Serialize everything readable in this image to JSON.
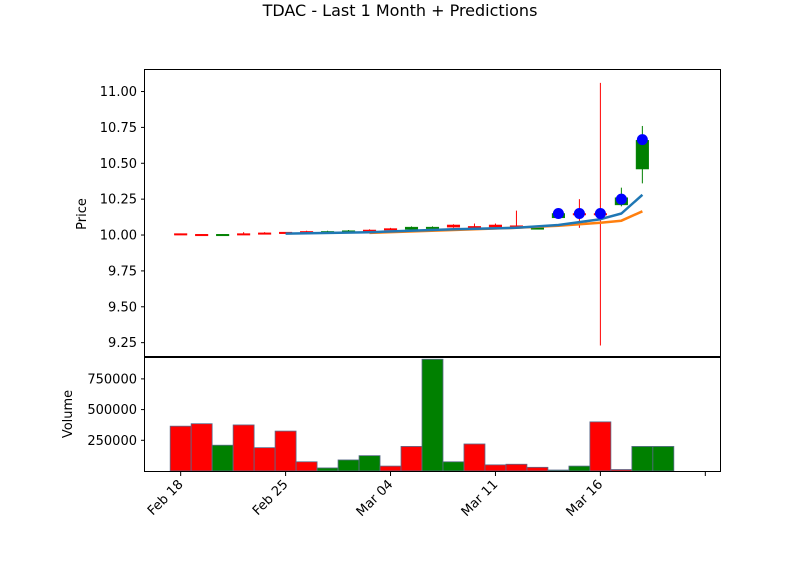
{
  "chart_data": {
    "type": "candlestick",
    "title": "TDAC - Last 1 Month + Predictions",
    "price_panel": {
      "ylabel": "Price",
      "ylim": [
        9.15,
        11.15
      ],
      "yticks": [
        "9.25",
        "9.50",
        "9.75",
        "10.00",
        "10.25",
        "10.50",
        "10.75",
        "11.00"
      ],
      "ytick_values": [
        9.25,
        9.5,
        9.75,
        10.0,
        10.25,
        10.5,
        10.75,
        11.0
      ],
      "candles": [
        {
          "day": 0,
          "open": 10.01,
          "close": 10.005,
          "high": 10.01,
          "low": 10.0,
          "color": "#ff0000"
        },
        {
          "day": 1,
          "open": 10.005,
          "close": 10.0,
          "high": 10.005,
          "low": 10.0,
          "color": "#ff0000"
        },
        {
          "day": 2,
          "open": 10.0,
          "close": 10.005,
          "high": 10.005,
          "low": 10.0,
          "color": "#008000"
        },
        {
          "day": 3,
          "open": 10.01,
          "close": 10.005,
          "high": 10.02,
          "low": 10.0,
          "color": "#ff0000"
        },
        {
          "day": 4,
          "open": 10.015,
          "close": 10.01,
          "high": 10.02,
          "low": 10.01,
          "color": "#ff0000"
        },
        {
          "day": 5,
          "open": 10.02,
          "close": 10.015,
          "high": 10.02,
          "low": 10.01,
          "color": "#ff0000"
        },
        {
          "day": 6,
          "open": 10.025,
          "close": 10.02,
          "high": 10.03,
          "low": 10.02,
          "color": "#ff0000"
        },
        {
          "day": 7,
          "open": 10.02,
          "close": 10.025,
          "high": 10.03,
          "low": 10.02,
          "color": "#008000"
        },
        {
          "day": 8,
          "open": 10.025,
          "close": 10.03,
          "high": 10.035,
          "low": 10.025,
          "color": "#008000"
        },
        {
          "day": 9,
          "open": 10.035,
          "close": 10.03,
          "high": 10.04,
          "low": 10.025,
          "color": "#ff0000"
        },
        {
          "day": 10,
          "open": 10.045,
          "close": 10.04,
          "high": 10.05,
          "low": 10.035,
          "color": "#ff0000"
        },
        {
          "day": 11,
          "open": 10.04,
          "close": 10.055,
          "high": 10.06,
          "low": 10.04,
          "color": "#008000"
        },
        {
          "day": 12,
          "open": 10.05,
          "close": 10.055,
          "high": 10.06,
          "low": 10.045,
          "color": "#008000"
        },
        {
          "day": 13,
          "open": 10.07,
          "close": 10.055,
          "high": 10.075,
          "low": 10.05,
          "color": "#ff0000"
        },
        {
          "day": 14,
          "open": 10.06,
          "close": 10.05,
          "high": 10.08,
          "low": 10.04,
          "color": "#ff0000"
        },
        {
          "day": 15,
          "open": 10.07,
          "close": 10.055,
          "high": 10.08,
          "low": 10.05,
          "color": "#ff0000"
        },
        {
          "day": 16,
          "open": 10.065,
          "close": 10.06,
          "high": 10.17,
          "low": 10.05,
          "color": "#ff0000"
        },
        {
          "day": 17,
          "open": 10.05,
          "close": 10.05,
          "high": 10.055,
          "low": 10.045,
          "color": "#008000"
        },
        {
          "day": 18,
          "open": 10.12,
          "close": 10.15,
          "high": 10.17,
          "low": 10.12,
          "color": "#008000"
        },
        {
          "day": 19,
          "open": 10.15,
          "close": 10.14,
          "high": 10.25,
          "low": 10.05,
          "color": "#ff0000"
        },
        {
          "day": 20,
          "open": 10.15,
          "close": 10.14,
          "high": 11.06,
          "low": 9.23,
          "color": "#ff0000"
        },
        {
          "day": 21,
          "open": 10.21,
          "close": 10.26,
          "high": 10.33,
          "low": 10.2,
          "color": "#008000"
        },
        {
          "day": 22,
          "open": 10.46,
          "close": 10.66,
          "high": 10.76,
          "low": 10.36,
          "color": "#008000"
        }
      ],
      "blue_line": {
        "color": "#1f77b4",
        "points": [
          [
            5,
            10.01
          ],
          [
            9,
            10.02
          ],
          [
            13,
            10.04
          ],
          [
            16,
            10.05
          ],
          [
            18,
            10.07
          ],
          [
            20,
            10.11
          ],
          [
            21,
            10.15
          ],
          [
            22,
            10.28
          ]
        ]
      },
      "orange_line": {
        "color": "#ff7f0e",
        "points": [
          [
            9,
            10.015
          ],
          [
            13,
            10.035
          ],
          [
            16,
            10.05
          ],
          [
            18,
            10.065
          ],
          [
            20,
            10.085
          ],
          [
            21,
            10.1
          ],
          [
            22,
            10.165
          ]
        ]
      },
      "prediction_markers": {
        "color": "#0000ff",
        "points": [
          [
            18,
            10.15
          ],
          [
            19,
            10.15
          ],
          [
            20,
            10.15
          ],
          [
            21,
            10.25
          ],
          [
            22,
            10.665
          ]
        ]
      }
    },
    "volume_panel": {
      "ylabel": "Volume",
      "ylim": [
        0,
        920000
      ],
      "yticks": [
        "250000",
        "500000",
        "750000"
      ],
      "ytick_values": [
        250000,
        500000,
        750000
      ],
      "bars": [
        {
          "day": 0,
          "value": 365000,
          "color": "#ff0000"
        },
        {
          "day": 1,
          "value": 385000,
          "color": "#ff0000"
        },
        {
          "day": 2,
          "value": 210000,
          "color": "#008000"
        },
        {
          "day": 3,
          "value": 375000,
          "color": "#ff0000"
        },
        {
          "day": 4,
          "value": 190000,
          "color": "#ff0000"
        },
        {
          "day": 5,
          "value": 325000,
          "color": "#ff0000"
        },
        {
          "day": 6,
          "value": 75000,
          "color": "#ff0000"
        },
        {
          "day": 7,
          "value": 25000,
          "color": "#008000"
        },
        {
          "day": 8,
          "value": 90000,
          "color": "#008000"
        },
        {
          "day": 9,
          "value": 125000,
          "color": "#008000"
        },
        {
          "day": 10,
          "value": 40000,
          "color": "#ff0000"
        },
        {
          "day": 11,
          "value": 200000,
          "color": "#ff0000"
        },
        {
          "day": 12,
          "value": 910000,
          "color": "#008000"
        },
        {
          "day": 13,
          "value": 75000,
          "color": "#008000"
        },
        {
          "day": 14,
          "value": 220000,
          "color": "#ff0000"
        },
        {
          "day": 15,
          "value": 50000,
          "color": "#ff0000"
        },
        {
          "day": 16,
          "value": 55000,
          "color": "#ff0000"
        },
        {
          "day": 17,
          "value": 30000,
          "color": "#ff0000"
        },
        {
          "day": 18,
          "value": 8000,
          "color": "#008000"
        },
        {
          "day": 19,
          "value": 40000,
          "color": "#008000"
        },
        {
          "day": 20,
          "value": 400000,
          "color": "#ff0000"
        },
        {
          "day": 21,
          "value": 12000,
          "color": "#ff0000"
        },
        {
          "day": 22,
          "value": 200000,
          "color": "#008000"
        },
        {
          "day": 23,
          "value": 200000,
          "color": "#008000"
        }
      ]
    },
    "x_axis": {
      "day_range": [
        -1.7,
        25.7
      ],
      "ticks": [
        {
          "label": "Feb 18",
          "day": 0
        },
        {
          "label": "Feb 25",
          "day": 5
        },
        {
          "label": "Mar 04",
          "day": 10
        },
        {
          "label": "Mar 11",
          "day": 15
        },
        {
          "label": "Mar 16",
          "day": 20
        },
        {
          "label": "",
          "day": 25
        }
      ]
    },
    "grid": false,
    "legend": "none"
  }
}
